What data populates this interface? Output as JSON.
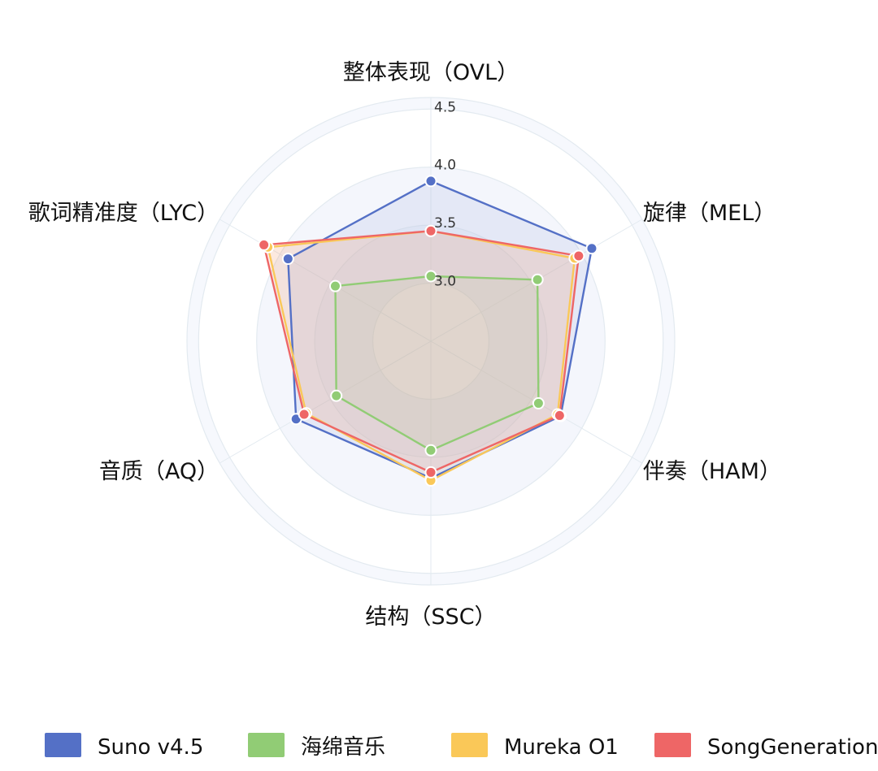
{
  "chart_data": {
    "type": "radar",
    "title": "",
    "axes": [
      "整体表现（OVL）",
      "旋律（MEL）",
      "伴奏（HAM）",
      "结构（SSC）",
      "音质（AQ）",
      "歌词精准度（LYC）"
    ],
    "range": [
      2.5,
      4.6
    ],
    "ticks": [
      3.0,
      3.5,
      4.0,
      4.5
    ],
    "tick_labels": [
      "3.0",
      "3.5",
      "4.0",
      "4.5"
    ],
    "grid": true,
    "legend_position": "bottom",
    "series": [
      {
        "name": "Suno v4.5",
        "color": "#5470c6",
        "values": [
          3.88,
          4.1,
          3.79,
          3.68,
          3.84,
          3.92
        ]
      },
      {
        "name": "海绵音乐",
        "color": "#91cc75",
        "values": [
          3.06,
          3.56,
          3.57,
          3.44,
          3.44,
          3.45
        ]
      },
      {
        "name": "Mureka O1",
        "color": "#fac858",
        "values": [
          3.45,
          3.93,
          3.76,
          3.7,
          3.74,
          4.12
        ]
      },
      {
        "name": "SongGeneration",
        "color": "#ee6666",
        "values": [
          3.45,
          3.97,
          3.78,
          3.63,
          3.76,
          4.16
        ]
      }
    ]
  }
}
